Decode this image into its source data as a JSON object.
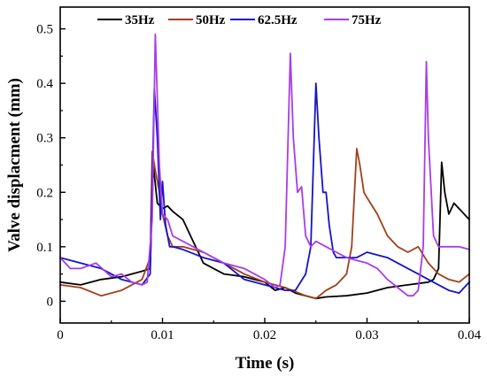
{
  "chart_data": {
    "type": "line",
    "title": "",
    "xlabel": "Time (s)",
    "ylabel": "Valve displacment (mm)",
    "xlim": [
      0,
      0.04
    ],
    "ylim": [
      -0.04,
      0.54
    ],
    "x_ticks": [
      0,
      0.01,
      0.02,
      0.03,
      0.04
    ],
    "x_tick_labels": [
      "0",
      "0.01",
      "0.02",
      "0.03",
      "0.04"
    ],
    "y_ticks": [
      0,
      0.1,
      0.2,
      0.3,
      0.4,
      0.5
    ],
    "y_tick_labels": [
      "0",
      "0.1",
      "0.2",
      "0.3",
      "0.4",
      "0.5"
    ],
    "grid": false,
    "legend_position": "top",
    "series": [
      {
        "name": "35Hz",
        "color": "#000000",
        "x": [
          0,
          0.002,
          0.004,
          0.006,
          0.008,
          0.0088,
          0.0091,
          0.0095,
          0.01,
          0.0105,
          0.011,
          0.012,
          0.013,
          0.014,
          0.016,
          0.018,
          0.02,
          0.021,
          0.022,
          0.023,
          0.024,
          0.025,
          0.026,
          0.028,
          0.03,
          0.032,
          0.034,
          0.036,
          0.0365,
          0.037,
          0.0373,
          0.0376,
          0.038,
          0.0385,
          0.039,
          0.0395,
          0.04
        ],
        "y": [
          0.035,
          0.03,
          0.04,
          0.045,
          0.055,
          0.06,
          0.25,
          0.18,
          0.17,
          0.175,
          0.165,
          0.15,
          0.11,
          0.07,
          0.05,
          0.045,
          0.035,
          0.02,
          0.025,
          0.015,
          0.01,
          0.005,
          0.008,
          0.01,
          0.015,
          0.025,
          0.03,
          0.035,
          0.04,
          0.06,
          0.255,
          0.2,
          0.16,
          0.18,
          0.17,
          0.16,
          0.15
        ]
      },
      {
        "name": "50Hz",
        "color": "#a0401a",
        "x": [
          0,
          0.002,
          0.004,
          0.006,
          0.008,
          0.0088,
          0.009,
          0.0093,
          0.0097,
          0.01,
          0.0105,
          0.011,
          0.012,
          0.014,
          0.016,
          0.018,
          0.02,
          0.022,
          0.024,
          0.025,
          0.026,
          0.027,
          0.028,
          0.0285,
          0.029,
          0.0293,
          0.0297,
          0.03,
          0.031,
          0.032,
          0.033,
          0.034,
          0.035,
          0.036,
          0.037,
          0.038,
          0.039,
          0.04
        ],
        "y": [
          0.03,
          0.025,
          0.01,
          0.02,
          0.04,
          0.08,
          0.275,
          0.24,
          0.2,
          0.16,
          0.12,
          0.1,
          0.1,
          0.09,
          0.07,
          0.05,
          0.035,
          0.025,
          0.01,
          0.005,
          0.02,
          0.03,
          0.05,
          0.1,
          0.28,
          0.25,
          0.2,
          0.19,
          0.16,
          0.12,
          0.1,
          0.09,
          0.1,
          0.07,
          0.05,
          0.04,
          0.035,
          0.05
        ]
      },
      {
        "name": "62.5Hz",
        "color": "#1414c8",
        "x": [
          0,
          0.002,
          0.004,
          0.006,
          0.008,
          0.0088,
          0.0092,
          0.0095,
          0.0098,
          0.01,
          0.0103,
          0.0107,
          0.011,
          0.012,
          0.014,
          0.016,
          0.018,
          0.02,
          0.022,
          0.023,
          0.024,
          0.0245,
          0.025,
          0.0253,
          0.0257,
          0.026,
          0.0263,
          0.0267,
          0.027,
          0.028,
          0.029,
          0.03,
          0.031,
          0.032,
          0.033,
          0.034,
          0.035,
          0.036,
          0.037,
          0.038,
          0.039,
          0.04
        ],
        "y": [
          0.08,
          0.07,
          0.06,
          0.04,
          0.03,
          0.05,
          0.39,
          0.3,
          0.15,
          0.22,
          0.14,
          0.1,
          0.1,
          0.095,
          0.08,
          0.07,
          0.04,
          0.03,
          0.02,
          0.02,
          0.05,
          0.1,
          0.4,
          0.3,
          0.2,
          0.2,
          0.14,
          0.09,
          0.08,
          0.08,
          0.08,
          0.09,
          0.085,
          0.08,
          0.07,
          0.06,
          0.05,
          0.04,
          0.03,
          0.02,
          0.015,
          0.035
        ]
      },
      {
        "name": "75Hz",
        "color": "#a83ce8",
        "x": [
          0,
          0.001,
          0.002,
          0.0035,
          0.005,
          0.006,
          0.007,
          0.008,
          0.0085,
          0.009,
          0.0093,
          0.0097,
          0.01,
          0.0105,
          0.011,
          0.012,
          0.013,
          0.014,
          0.016,
          0.018,
          0.02,
          0.021,
          0.0215,
          0.022,
          0.0225,
          0.0228,
          0.0232,
          0.0236,
          0.024,
          0.0245,
          0.025,
          0.026,
          0.027,
          0.028,
          0.029,
          0.03,
          0.031,
          0.032,
          0.033,
          0.034,
          0.0345,
          0.035,
          0.0355,
          0.0358,
          0.036,
          0.0365,
          0.037,
          0.0375,
          0.038,
          0.039,
          0.04
        ],
        "y": [
          0.08,
          0.06,
          0.06,
          0.07,
          0.045,
          0.05,
          0.035,
          0.03,
          0.035,
          0.15,
          0.49,
          0.25,
          0.16,
          0.15,
          0.12,
          0.11,
          0.1,
          0.09,
          0.07,
          0.06,
          0.04,
          0.025,
          0.03,
          0.1,
          0.455,
          0.3,
          0.2,
          0.21,
          0.12,
          0.1,
          0.11,
          0.1,
          0.09,
          0.08,
          0.075,
          0.07,
          0.06,
          0.04,
          0.025,
          0.01,
          0.01,
          0.02,
          0.1,
          0.44,
          0.3,
          0.12,
          0.1,
          0.1,
          0.1,
          0.1,
          0.095
        ]
      }
    ]
  }
}
